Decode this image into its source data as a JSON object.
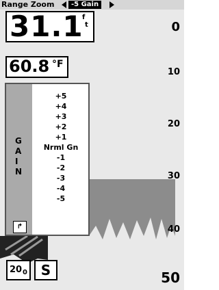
{
  "header": {
    "mode": "Range Zoom",
    "setting": "-5 Gain"
  },
  "readouts": {
    "depth": "31.1",
    "depth_unit_top": "f",
    "depth_unit_bottom": "t",
    "temperature": "60.8",
    "temp_unit": "°F"
  },
  "depth_scale": [
    "0",
    "10",
    "20",
    "30",
    "40",
    "50"
  ],
  "gain_menu": {
    "label": [
      "G",
      "A",
      "I",
      "N"
    ],
    "items": [
      "+5",
      "+4",
      "+3",
      "+2",
      "+1",
      "Nrml Gn",
      "-1",
      "-2",
      "-3",
      "-4",
      "-5"
    ]
  },
  "footer": {
    "zoom_icon_main": "20",
    "zoom_icon_sub": "0",
    "button": "S"
  }
}
